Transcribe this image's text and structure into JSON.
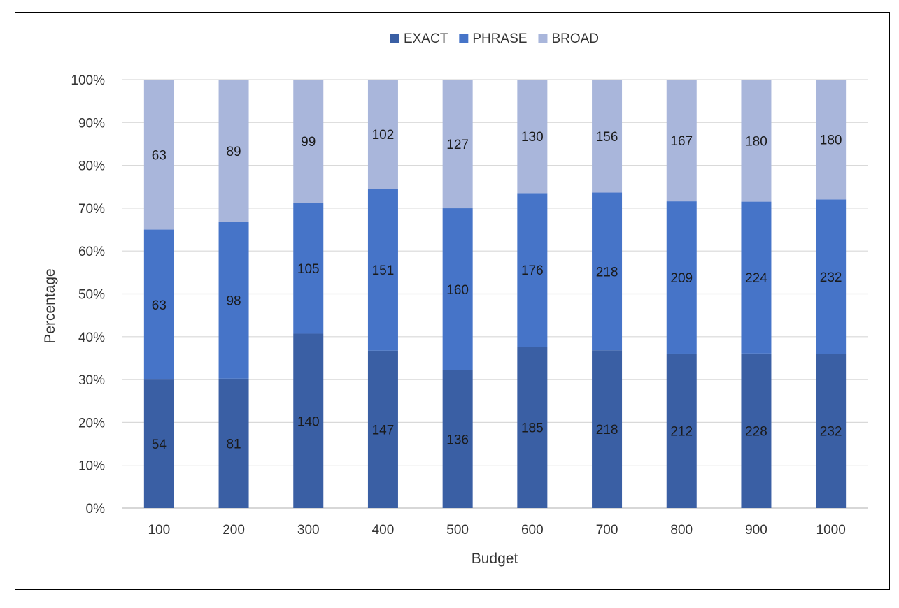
{
  "caption_fragment": "",
  "chart_data": {
    "type": "bar",
    "stacked": "percent",
    "title": "",
    "xlabel": "Budget",
    "ylabel": "Percentage",
    "categories": [
      "100",
      "200",
      "300",
      "400",
      "500",
      "600",
      "700",
      "800",
      "900",
      "1000"
    ],
    "y_ticks": [
      "0%",
      "10%",
      "20%",
      "30%",
      "40%",
      "50%",
      "60%",
      "70%",
      "80%",
      "90%",
      "100%"
    ],
    "ylim": [
      0,
      100
    ],
    "grid": true,
    "legend_position": "top-center",
    "series": [
      {
        "name": "EXACT",
        "color": "#3A5FA4",
        "values": [
          54,
          81,
          140,
          147,
          136,
          185,
          218,
          212,
          228,
          232
        ]
      },
      {
        "name": "PHRASE",
        "color": "#4674C8",
        "values": [
          63,
          98,
          105,
          151,
          160,
          176,
          218,
          209,
          224,
          232
        ]
      },
      {
        "name": "BROAD",
        "color": "#A9B6DB",
        "values": [
          63,
          89,
          99,
          102,
          127,
          130,
          156,
          167,
          180,
          180
        ]
      }
    ]
  }
}
